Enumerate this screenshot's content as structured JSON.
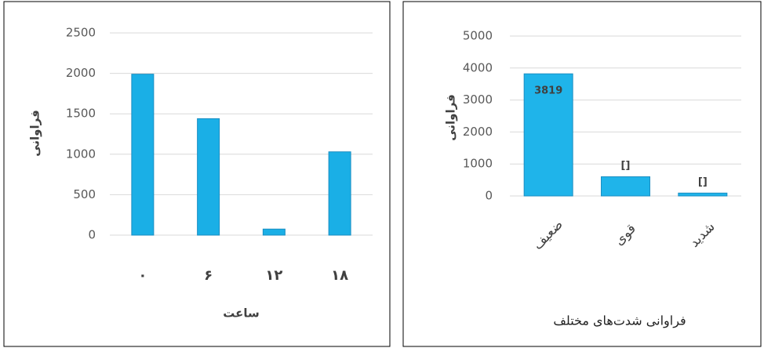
{
  "chart_data": [
    {
      "type": "bar",
      "categories": [
        "۰",
        "۶",
        "۱۲",
        "۱۸"
      ],
      "values": [
        1990,
        1440,
        75,
        1030
      ],
      "color": "#1aafe6",
      "x_label": "ساعت",
      "y_label": "فراوانی",
      "ylim": [
        0,
        2500
      ],
      "yticks": [
        0,
        500,
        1000,
        1500,
        2000,
        2500
      ],
      "grid": true
    },
    {
      "type": "bar",
      "title": "فراوانی شدت‌های مختلف",
      "categories": [
        "ضعیف",
        "قوی",
        "شدید"
      ],
      "values": [
        3819,
        600,
        90
      ],
      "color": "#1fb4ea",
      "y_label": "فراوانی",
      "ylim": [
        0,
        5000
      ],
      "yticks": [
        0,
        1000,
        2000,
        3000,
        4000,
        5000
      ],
      "grid": true,
      "annotations": [
        "[]",
        "[]"
      ]
    }
  ]
}
